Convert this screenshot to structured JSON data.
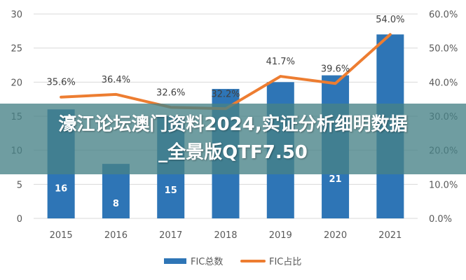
{
  "chart_data": {
    "type": "bar",
    "categories": [
      "2015",
      "2016",
      "2017",
      "2018",
      "2019",
      "2020",
      "2021"
    ],
    "series": [
      {
        "name": "FIC总数",
        "type": "bar",
        "axis": "left",
        "color": "#2e75b6",
        "values": [
          16,
          8,
          15,
          19,
          20,
          21,
          27
        ],
        "labels": [
          "16",
          "8",
          "15",
          "",
          "",
          "21",
          ""
        ]
      },
      {
        "name": "FIC占比",
        "type": "line",
        "axis": "right",
        "color": "#ed7d31",
        "values": [
          35.6,
          36.4,
          32.6,
          32.2,
          41.7,
          39.6,
          54.0
        ],
        "labels": [
          "35.6%",
          "36.4%",
          "32.6%",
          "32.2%",
          "41.7%",
          "39.6%",
          "54.0%"
        ]
      }
    ],
    "y_left": {
      "min": 0,
      "max": 30,
      "ticks": [
        "0",
        "5",
        "10",
        "15",
        "20",
        "25",
        "30"
      ]
    },
    "y_right": {
      "min": 0,
      "max": 60,
      "ticks": [
        "0.0%",
        "10.0%",
        "20.0%",
        "30.0%",
        "40.0%",
        "50.0%",
        "60.0%"
      ]
    },
    "legend_position": "bottom-center",
    "grid": true
  },
  "overlay": {
    "line1": "濠江论坛澳门资料2024,实证分析细明数据",
    "line2": "_全景版QTF7.50"
  },
  "colors": {
    "bar": "#2e75b6",
    "line": "#ed7d31",
    "grid": "#d9d9d9",
    "axis_text": "#595959"
  }
}
